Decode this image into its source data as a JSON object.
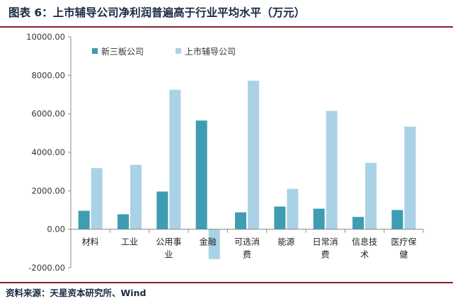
{
  "title": "图表 6：上市辅导公司净利润普遍高于行业平均水平（万元）",
  "source": "资料来源：天星资本研究所、Wind",
  "colors": {
    "series_0": "#3e9db2",
    "series_1": "#a9d2e6",
    "axis": "#888888",
    "title_rule": "#8a1e2c",
    "title_text": "#1a2a44"
  },
  "chart_data": {
    "type": "bar",
    "categories": [
      [
        "材料"
      ],
      [
        "工业"
      ],
      [
        "公用事",
        "业"
      ],
      [
        "金融"
      ],
      [
        "可选消",
        "费"
      ],
      [
        "能源"
      ],
      [
        "日常消",
        "费"
      ],
      [
        "信息技",
        "术"
      ],
      [
        "医疗保",
        "健"
      ]
    ],
    "series": [
      {
        "name": "新三板公司",
        "values": [
          960,
          780,
          1960,
          5650,
          880,
          1180,
          1070,
          640,
          1000
        ]
      },
      {
        "name": "上市辅导公司",
        "values": [
          3180,
          3350,
          7250,
          -1550,
          7720,
          2100,
          6150,
          3450,
          5330
        ]
      }
    ],
    "ylim": [
      -2000,
      10000
    ],
    "yticks": [
      10000,
      8000,
      6000,
      4000,
      2000,
      0,
      -2000
    ],
    "ytick_labels": [
      "10000.00",
      "8000.00",
      "6000.00",
      "4000.00",
      "2000.00",
      "0.00",
      "-2000.00"
    ],
    "grid": false,
    "legend": "top-left"
  }
}
